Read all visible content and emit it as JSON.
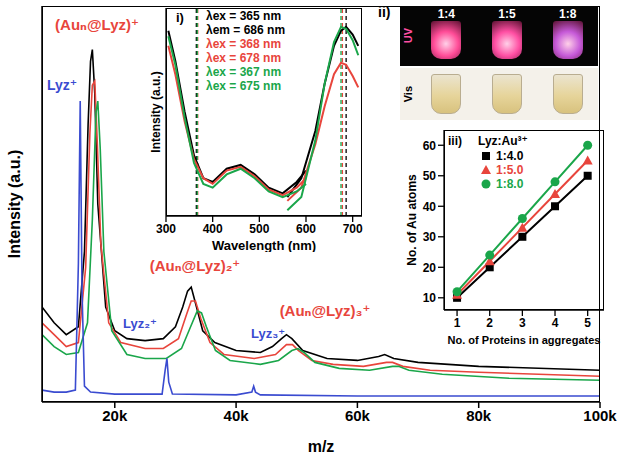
{
  "chart_data": [
    {
      "type": "line",
      "x_label": "m/z",
      "y_label": "Intensity (a.u.)",
      "xlim": [
        8000,
        100000
      ],
      "xticks": [
        {
          "value": 20000,
          "label": "20k"
        },
        {
          "value": 40000,
          "label": "40k"
        },
        {
          "value": 60000,
          "label": "60k"
        },
        {
          "value": 80000,
          "label": "80k"
        },
        {
          "value": 100000,
          "label": "100k"
        }
      ],
      "ylim": [
        0,
        100
      ],
      "tick_labels": "x",
      "series": [
        {
          "color": "#000000",
          "x": [
            8000,
            10000,
            12000,
            14000,
            15000,
            15600,
            16000,
            16300,
            16700,
            17200,
            18500,
            20000,
            22000,
            25000,
            28000,
            30000,
            31200,
            32000,
            32600,
            33300,
            34500,
            36500,
            40000,
            44000,
            46000,
            47500,
            48300,
            49200,
            51000,
            55000,
            60000,
            63500,
            64500,
            66000,
            70000,
            80000,
            100000
          ],
          "values": [
            24,
            20,
            17,
            19,
            38,
            70,
            86,
            89,
            78,
            50,
            24,
            18,
            16,
            15.5,
            16,
            19,
            24,
            28,
            29,
            25,
            18,
            15,
            13,
            12.5,
            14,
            16,
            17,
            16,
            13,
            11,
            10.5,
            11.5,
            12,
            11,
            10,
            9,
            8
          ]
        },
        {
          "color": "#e8453c",
          "x": [
            8000,
            10000,
            12000,
            14000,
            15200,
            15900,
            16300,
            16700,
            17100,
            17700,
            19000,
            21000,
            25000,
            28000,
            30500,
            31800,
            32600,
            33300,
            34200,
            35700,
            38000,
            43000,
            46500,
            48300,
            49300,
            50300,
            52500,
            56000,
            61000,
            64800,
            65800,
            67500,
            72000,
            80000,
            100000
          ],
          "values": [
            20,
            17,
            14,
            15,
            34,
            68,
            80,
            81,
            66,
            40,
            20,
            15,
            13.5,
            13.5,
            16,
            22,
            25.5,
            25.5,
            21,
            15,
            12,
            11,
            12,
            14.5,
            14.5,
            13,
            10.5,
            9.5,
            9,
            10,
            10,
            9,
            8,
            7.5,
            6.5
          ]
        },
        {
          "color": "#1aa64a",
          "x": [
            8000,
            10000,
            12000,
            14000,
            15500,
            16300,
            16900,
            17200,
            17600,
            18200,
            19500,
            22000,
            25000,
            28500,
            31000,
            32500,
            33600,
            34300,
            35100,
            36600,
            39000,
            44000,
            47000,
            49200,
            50200,
            51200,
            53000,
            57000,
            62000,
            65800,
            66800,
            68500,
            74000,
            85000,
            100000
          ],
          "values": [
            17,
            14,
            12,
            12.5,
            20,
            46,
            73,
            76,
            64,
            38,
            18,
            12,
            11,
            11,
            13.5,
            19,
            23,
            22.5,
            19,
            13,
            10.5,
            9.5,
            10.5,
            13,
            13.5,
            12.5,
            10,
            8.5,
            8,
            9,
            9,
            8,
            7,
            6,
            5.5
          ]
        },
        {
          "color": "#3a4bd0",
          "x": [
            8000,
            10000,
            12000,
            13500,
            14000,
            14300,
            14600,
            15000,
            16000,
            20000,
            27800,
            28300,
            28600,
            28900,
            29500,
            40000,
            42600,
            42900,
            43200,
            44000,
            60000,
            100000
          ],
          "values": [
            3,
            2.5,
            2.5,
            3,
            35,
            76,
            28,
            4,
            2.5,
            2,
            2,
            8,
            11,
            5,
            2,
            1.8,
            2.5,
            4,
            2.5,
            1.8,
            1.5,
            1.5
          ]
        }
      ],
      "annotations": [
        {
          "text": "(Auₙ@Lyz)⁺",
          "color": "#e8453c"
        },
        {
          "text": "Lyz⁺",
          "color": "#3a4bd0"
        },
        {
          "text": "(Auₙ@Lyz)₂⁺",
          "color": "#e8453c"
        },
        {
          "text": "Lyz₂⁺",
          "color": "#3a4bd0"
        },
        {
          "text": "Lyz₃⁺",
          "color": "#3a4bd0"
        },
        {
          "text": "(Auₙ@Lyz)₃⁺",
          "color": "#e8453c"
        }
      ]
    },
    {
      "type": "line",
      "panel": "i)",
      "x_label": "Wavelength (nm)",
      "y_label": "Intensity (a.u.)",
      "xlim": [
        300,
        720
      ],
      "xticks": [
        300,
        400,
        500,
        600,
        700
      ],
      "ylim": [
        0,
        1.1
      ],
      "tick_labels": "x",
      "legend": "top",
      "series": [
        {
          "name": "λex = 365 nm",
          "color": "#000000",
          "peak": 365,
          "x": [
            305,
            320,
            340,
            360,
            380,
            400,
            430,
            460,
            490,
            520,
            550,
            580,
            600
          ],
          "values": [
            0.98,
            0.82,
            0.55,
            0.32,
            0.2,
            0.18,
            0.25,
            0.27,
            0.22,
            0.15,
            0.12,
            0.18,
            0.24
          ]
        },
        {
          "name": "λem = 686 nm",
          "color": "#000000",
          "peak": 686,
          "x": [
            560,
            590,
            620,
            640,
            660,
            675,
            686,
            700,
            712
          ],
          "values": [
            0.1,
            0.2,
            0.45,
            0.7,
            0.9,
            0.98,
            1.0,
            0.96,
            0.9
          ]
        },
        {
          "name": "λex = 368 nm",
          "color": "#e8453c",
          "peak": 368,
          "x": [
            305,
            320,
            340,
            360,
            380,
            400,
            430,
            460,
            490,
            520,
            550,
            580,
            600
          ],
          "values": [
            0.9,
            0.75,
            0.5,
            0.3,
            0.2,
            0.17,
            0.24,
            0.26,
            0.21,
            0.14,
            0.11,
            0.15,
            0.2
          ]
        },
        {
          "name": "λex = 678 nm",
          "color": "#e8453c",
          "peak": 678,
          "x": [
            560,
            590,
            620,
            640,
            660,
            675,
            686,
            700,
            712
          ],
          "values": [
            0.08,
            0.15,
            0.38,
            0.58,
            0.75,
            0.81,
            0.8,
            0.74,
            0.68
          ]
        },
        {
          "name": "λex = 367 nm",
          "color": "#1aa64a",
          "peak": 367,
          "x": [
            305,
            320,
            340,
            360,
            380,
            400,
            430,
            460,
            490,
            520,
            550,
            580,
            600
          ],
          "values": [
            0.95,
            0.8,
            0.52,
            0.28,
            0.17,
            0.15,
            0.22,
            0.25,
            0.2,
            0.13,
            0.1,
            0.13,
            0.17
          ]
        },
        {
          "name": "λex = 675 nm",
          "color": "#1aa64a",
          "peak": 675,
          "x": [
            560,
            590,
            620,
            640,
            660,
            675,
            686,
            700,
            712
          ],
          "values": [
            0.03,
            0.1,
            0.4,
            0.7,
            0.92,
            1.0,
            0.99,
            0.93,
            0.85
          ]
        }
      ]
    },
    {
      "type": "line",
      "panel": "iii)",
      "legend_title": "Lyz:Au³⁺",
      "x_label": "No. of Proteins in aggregates",
      "y_label": "No. of Au atoms",
      "xlim": [
        0.6,
        5.5
      ],
      "xticks": [
        1,
        2,
        3,
        4,
        5
      ],
      "ylim": [
        6,
        65
      ],
      "yticks": [
        10,
        20,
        30,
        40,
        50,
        60
      ],
      "legend": "upper left",
      "series": [
        {
          "name": "1:4.0",
          "color": "#000000",
          "marker": "square",
          "x": [
            1,
            2,
            3,
            4,
            5
          ],
          "values": [
            10,
            20,
            30,
            40,
            50
          ]
        },
        {
          "name": "1:5.0",
          "color": "#e8453c",
          "marker": "triangle",
          "x": [
            1,
            2,
            3,
            4,
            5
          ],
          "values": [
            11,
            22,
            33,
            44,
            55
          ]
        },
        {
          "name": "1:8.0",
          "color": "#1aa64a",
          "marker": "circle",
          "x": [
            1,
            2,
            3,
            4,
            5
          ],
          "values": [
            12,
            24,
            36,
            48,
            60
          ]
        }
      ]
    }
  ],
  "photo_panel": {
    "label": "ii)",
    "rows": [
      "UV",
      "Vis"
    ],
    "columns": [
      "1:4",
      "1:5",
      "1:8"
    ]
  }
}
